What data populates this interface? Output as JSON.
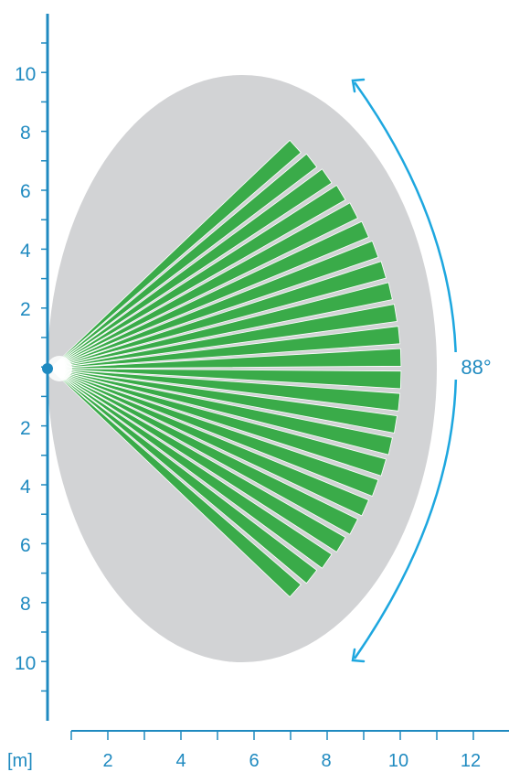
{
  "colors": {
    "axis": "#1f8ac0",
    "ellipse": "#d2d3d5",
    "beam": "#3aab49",
    "beam_edge": "#ffffff",
    "arrow": "#1ea7df"
  },
  "diagram": {
    "angle_label": "88°",
    "angle_deg": 88,
    "beam_count": 24,
    "max_range_m": 9.7,
    "unit_label": "[m]",
    "y_ticks_upper": [
      "10",
      "8",
      "6",
      "4",
      "2"
    ],
    "y_ticks_lower": [
      "2",
      "4",
      "6",
      "8",
      "10"
    ],
    "x_ticks": [
      "2",
      "4",
      "6",
      "8",
      "10",
      "12"
    ]
  }
}
